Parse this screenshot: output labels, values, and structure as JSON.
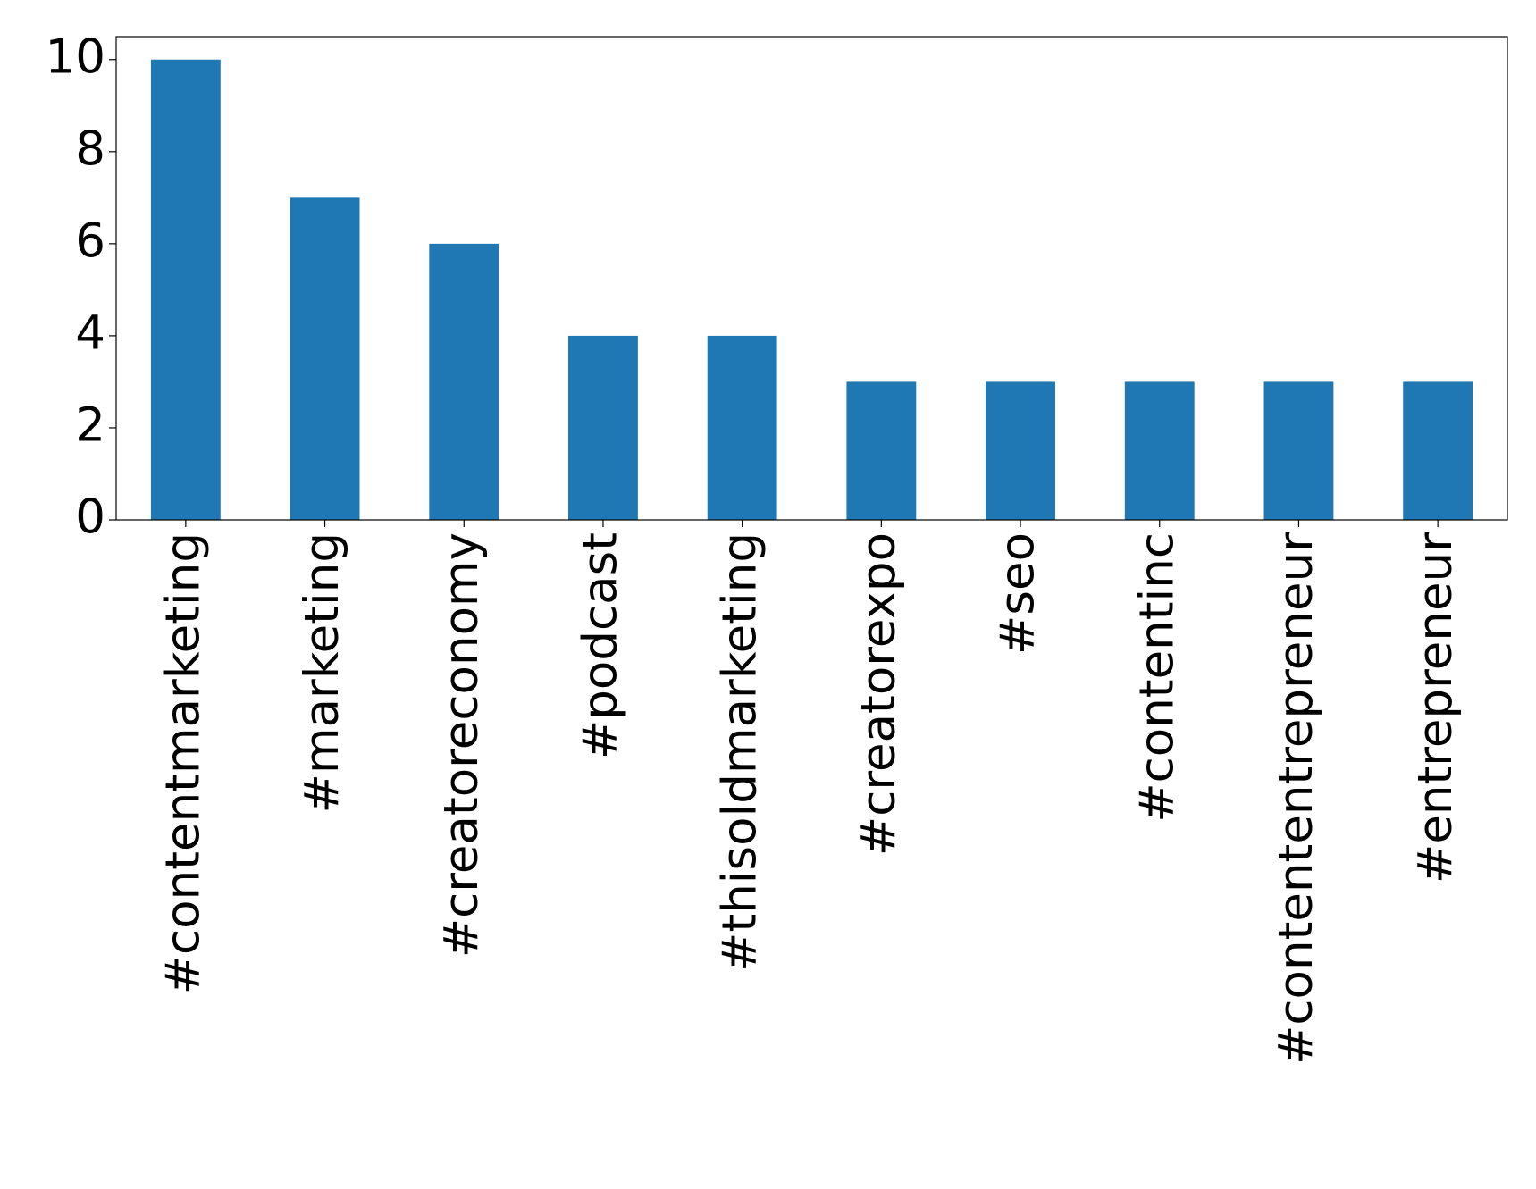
{
  "chart_data": {
    "type": "bar",
    "categories": [
      "#contentmarketing",
      "#marketing",
      "#creatoreconomy",
      "#podcast",
      "#thisoldmarketing",
      "#creatorexpo",
      "#seo",
      "#contentinc",
      "#contententrepreneur",
      "#entrepreneur"
    ],
    "values": [
      10,
      7,
      6,
      4,
      4,
      3,
      3,
      3,
      3,
      3
    ],
    "color": "#1f77b4",
    "ylim": [
      0,
      10.5
    ],
    "yticks": [
      0,
      2,
      4,
      6,
      8,
      10
    ],
    "grid": false
  }
}
